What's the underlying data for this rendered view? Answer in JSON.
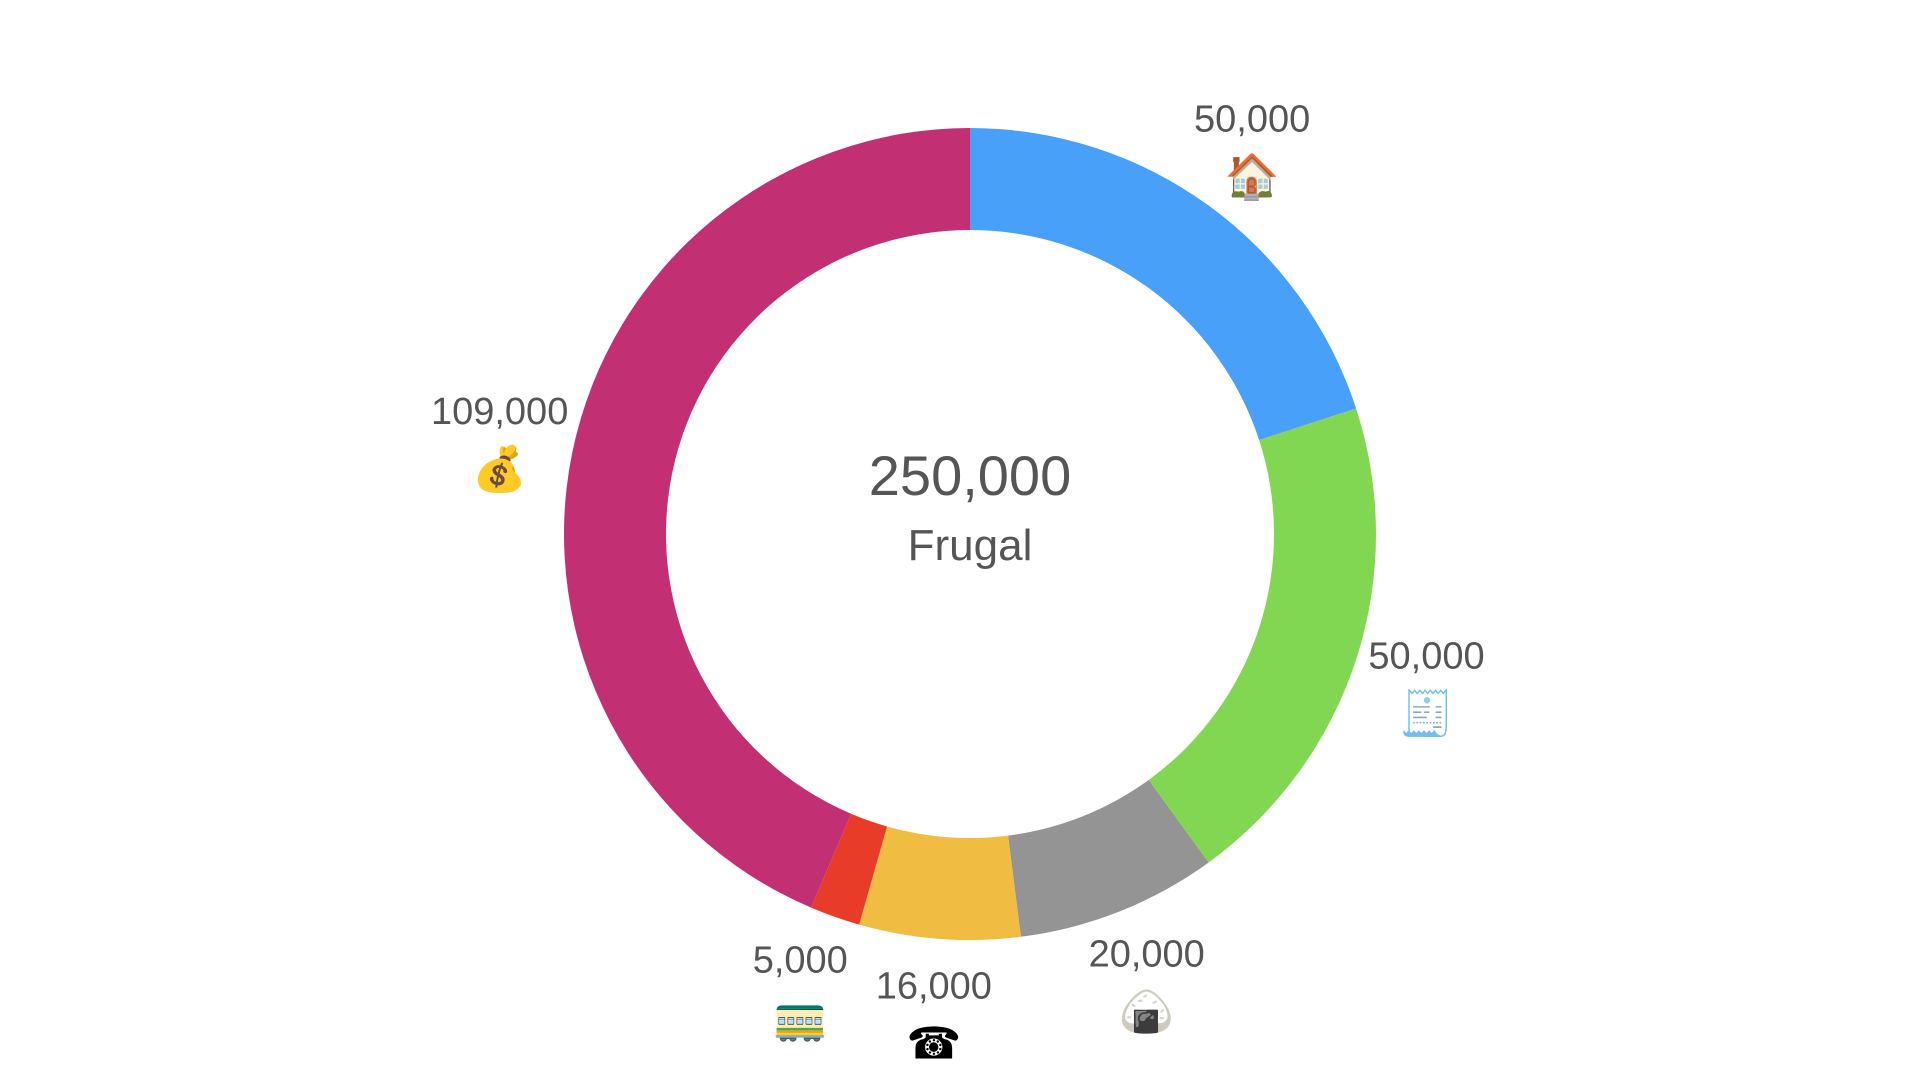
{
  "chart_data": {
    "type": "pie",
    "style": "donut",
    "center": {
      "total": "250,000",
      "label": "Frugal"
    },
    "slices": [
      {
        "value": 50000,
        "label": "50,000",
        "icon": "house-icon",
        "glyph": "🏠",
        "color": "#48A0F8"
      },
      {
        "value": 50000,
        "label": "50,000",
        "icon": "tax-receipt-icon",
        "glyph": "🧾",
        "color": "#82D752"
      },
      {
        "value": 20000,
        "label": "20,000",
        "icon": "rice-ball-icon",
        "glyph": "🍙",
        "color": "#949494"
      },
      {
        "value": 16000,
        "label": "16,000",
        "icon": "telephone-icon",
        "glyph": "☎",
        "color": "#F0BC41"
      },
      {
        "value": 5000,
        "label": "5,000",
        "icon": "tram-icon",
        "glyph": "🚃",
        "color": "#E83C28"
      },
      {
        "value": 109000,
        "label": "109,000",
        "icon": "money-bag-icon",
        "glyph": "💰",
        "color": "#C23073"
      }
    ]
  }
}
